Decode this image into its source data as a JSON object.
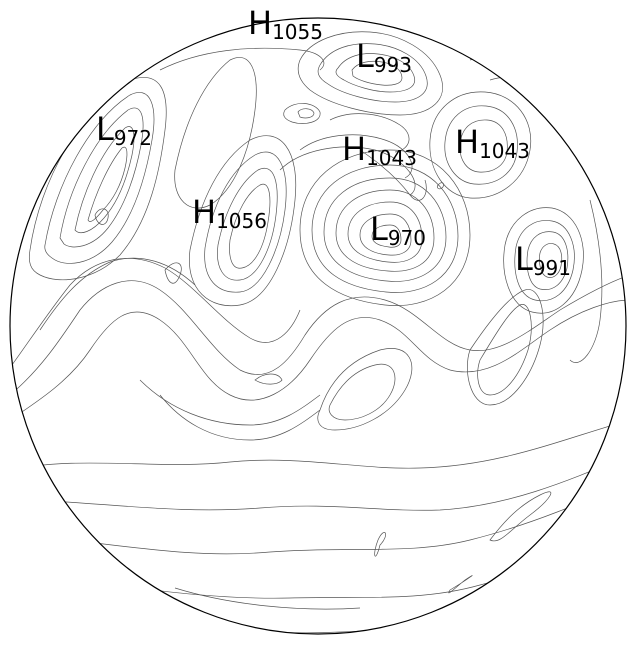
{
  "map": {
    "pressure_systems": [
      {
        "type": "H",
        "value": "1055"
      },
      {
        "type": "L",
        "value": "993"
      },
      {
        "type": "L",
        "value": "972"
      },
      {
        "type": "H",
        "value": "1043"
      },
      {
        "type": "H",
        "value": "1043"
      },
      {
        "type": "H",
        "value": "1056"
      },
      {
        "type": "L",
        "value": "970"
      },
      {
        "type": "L",
        "value": "991"
      }
    ],
    "colors": {
      "background": "#ffffff",
      "isobar": "#555555",
      "globe_outline": "#000000",
      "label": "#000000"
    }
  }
}
